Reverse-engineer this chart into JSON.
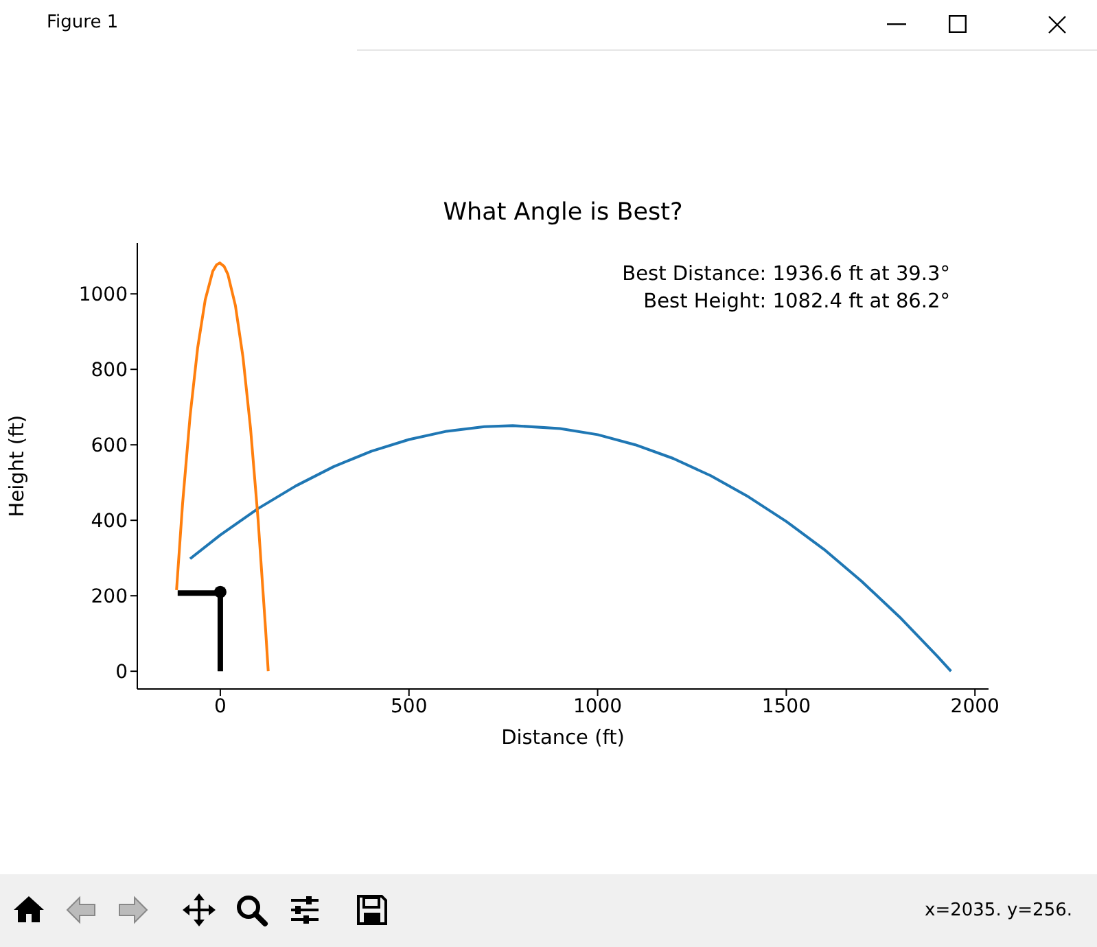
{
  "chart_data": {
    "type": "line",
    "title": "What Angle is Best?",
    "xlabel": "Distance (ft)",
    "ylabel": "Height (ft)",
    "annotations": [
      "Best Distance: 1936.6 ft at 39.3°",
      "Best Height: 1082.4 ft at 86.2°",
      "Figure 1",
      "x=2035. y=256."
    ],
    "xlim": [
      -220,
      2036
    ],
    "ylim": [
      -47,
      1135
    ],
    "xticks": [
      0,
      500,
      1000,
      1500,
      2000
    ],
    "yticks": [
      0,
      200,
      400,
      600,
      800,
      1000
    ],
    "grid": false,
    "legend": false,
    "series": [
      {
        "color": "#1f77b4",
        "x": [
          -80,
          0,
          100,
          200,
          300,
          400,
          500,
          600,
          700,
          775,
          900,
          1000,
          1100,
          1200,
          1300,
          1400,
          1500,
          1600,
          1700,
          1800,
          1900,
          1936.6
        ],
        "values": [
          298,
          361,
          431,
          491,
          542,
          583,
          614,
          636,
          648,
          651,
          643,
          627,
          600,
          564,
          518,
          462,
          397,
          323,
          238,
          144,
          40,
          0
        ]
      },
      {
        "color": "#ff7f0e",
        "x": [
          -116,
          -100,
          -80,
          -60,
          -40,
          -20,
          -10,
          -1.5,
          10,
          20,
          40,
          60,
          80,
          100,
          120,
          127
        ],
        "values": [
          215,
          444,
          677,
          857,
          984,
          1060,
          1077,
          1082,
          1073,
          1052,
          969,
          833,
          645,
          404,
          111,
          0
        ]
      },
      {
        "color": "#000000",
        "x": [
          -113,
          0,
          0
        ],
        "values": [
          207,
          207,
          0
        ]
      },
      {
        "type": "scatter",
        "color": "#000000",
        "marker": "circle",
        "x": [
          0
        ],
        "values": [
          210
        ]
      }
    ]
  }
}
